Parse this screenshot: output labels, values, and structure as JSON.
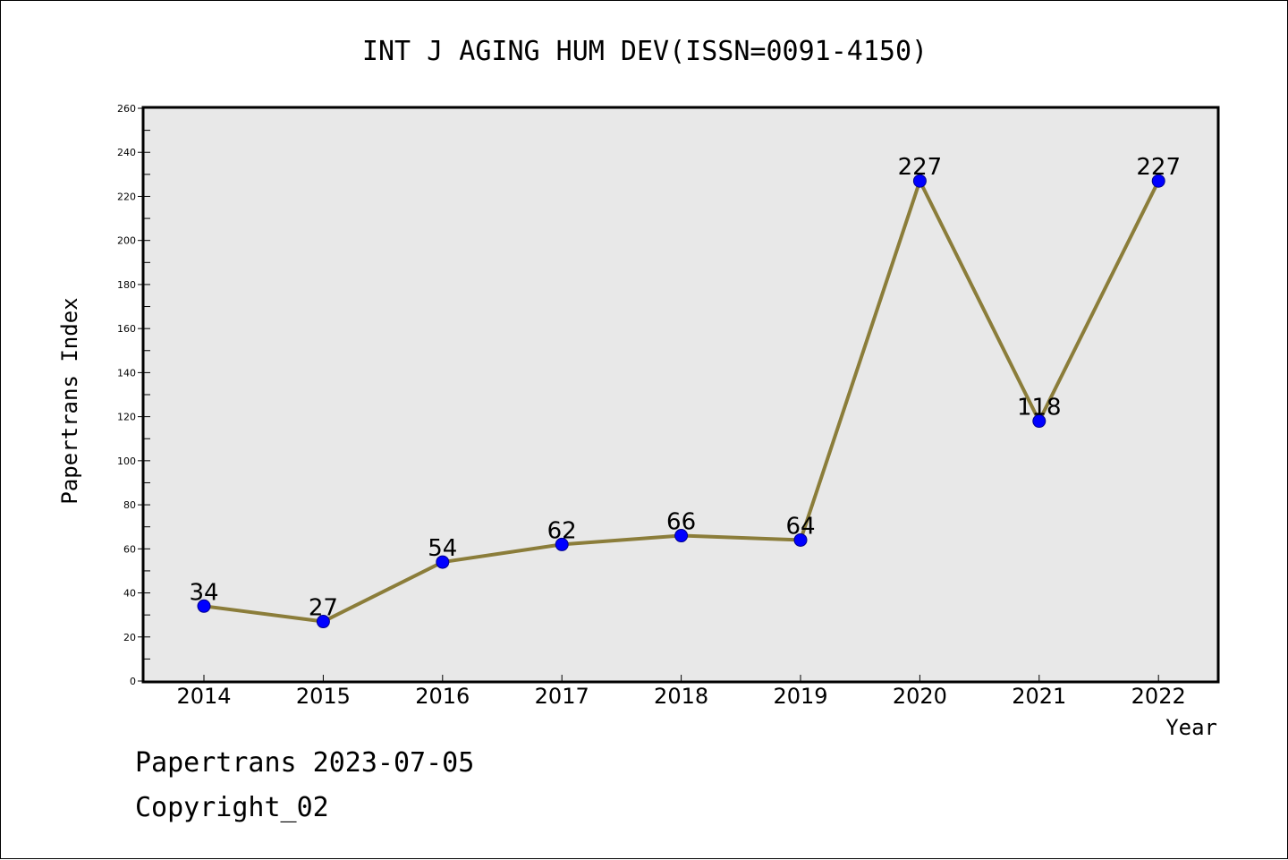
{
  "chart_data": {
    "type": "line",
    "title": "INT J AGING HUM DEV(ISSN=0091-4150)",
    "xlabel": "Year",
    "ylabel": "Papertrans Index",
    "categories": [
      "2014",
      "2015",
      "2016",
      "2017",
      "2018",
      "2019",
      "2020",
      "2021",
      "2022"
    ],
    "series": [
      {
        "values": [
          34,
          27,
          54,
          62,
          66,
          64,
          227,
          118,
          227
        ]
      }
    ],
    "data_labels": [
      "34",
      "27",
      "54",
      "62",
      "66",
      "64",
      "227",
      "118",
      "227"
    ],
    "ylim": [
      0,
      260
    ],
    "yticks": [
      0,
      20,
      40,
      60,
      80,
      100,
      120,
      140,
      160,
      180,
      200,
      220,
      240,
      260
    ],
    "grid": false,
    "legend": "none",
    "colors": {
      "line": "#8b7d3a",
      "marker": "#0000ff",
      "marker_edge": "#00008b",
      "plot_background": "#e8e8e8"
    }
  },
  "footer": {
    "line1": "Papertrans 2023-07-05",
    "line2": "Copyright_02"
  }
}
